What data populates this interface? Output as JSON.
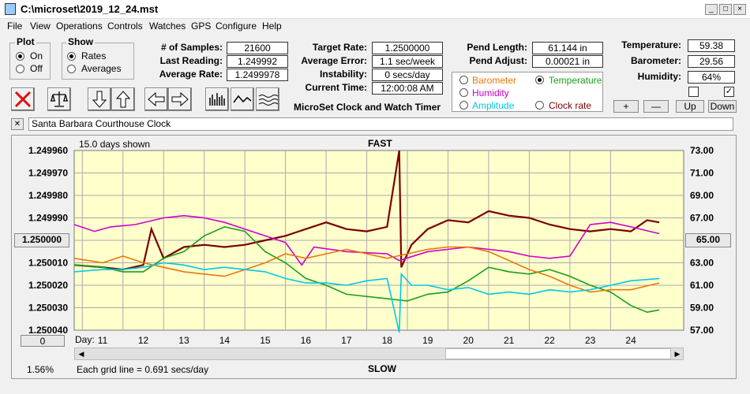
{
  "window": {
    "title": "C:\\microset\\2019_12_24.mst"
  },
  "menu": [
    "File",
    "View",
    "Operations",
    "Controls",
    "Watches",
    "GPS",
    "Configure",
    "Help"
  ],
  "plot_group": {
    "title": "Plot",
    "options": [
      "On",
      "Off"
    ],
    "selected": "On"
  },
  "show_group": {
    "title": "Show",
    "options": [
      "Rates",
      "Averages"
    ],
    "selected": "Rates"
  },
  "stats": {
    "samples_label": "# of Samples:",
    "samples": "21600",
    "last_label": "Last Reading:",
    "last": "1.249992",
    "avg_label": "Average Rate:",
    "avg": "1.2499978"
  },
  "target": {
    "target_label": "Target Rate:",
    "target": "1.2500000",
    "error_label": "Average Error:",
    "error": "1.1 sec/week",
    "instab_label": "Instability:",
    "instab": "0 secs/day",
    "time_label": "Current Time:",
    "time": "12:00:08 AM",
    "app_name": "MicroSet Clock and Watch Timer"
  },
  "pend": {
    "length_label": "Pend Length:",
    "length": "61.144 in",
    "adjust_label": "Pend Adjust:",
    "adjust": "0.00021 in"
  },
  "sensors": {
    "temp_label": "Temperature:",
    "temp": "59.38",
    "baro_label": "Barometer:",
    "baro": "29.56",
    "hum_label": "Humidity:",
    "hum": "64%"
  },
  "overlay": {
    "options": [
      {
        "label": "Barometer",
        "color": "#e8780a"
      },
      {
        "label": "Temperature",
        "color": "#1aa01a"
      },
      {
        "label": "Humidity",
        "color": "#cc00cc"
      },
      {
        "label": "Clock rate",
        "color": "#7a0000"
      },
      {
        "label": "Amplitude",
        "color": "#00c8e6"
      }
    ],
    "selected": "Temperature"
  },
  "adjust_buttons": [
    "+",
    "—",
    "Up",
    "Down"
  ],
  "watch_name": "Santa Barbara Courthouse Clock",
  "close_x": "✕",
  "checkbox_right": "✓",
  "chart": {
    "days_shown": "15.0 days shown",
    "fast": "FAST",
    "slow": "SLOW",
    "center_left": "1.250000",
    "center_right": "65.00",
    "left_zero": "0",
    "day_label": "Day:",
    "pct": "1.56%",
    "grid_note": "Each grid line = 0.691 secs/day"
  },
  "chart_data": {
    "type": "line",
    "left_ticks": [
      "1.249960",
      "1.249970",
      "1.249980",
      "1.249990",
      "1.250000",
      "1.250010",
      "1.250020",
      "1.250030",
      "1.250040"
    ],
    "right_ticks": [
      "73.00",
      "71.00",
      "69.00",
      "67.00",
      "65.00",
      "63.00",
      "61.00",
      "59.00",
      "57.00"
    ],
    "x_ticks": [
      "11",
      "12",
      "13",
      "14",
      "15",
      "16",
      "17",
      "18",
      "19",
      "20",
      "21",
      "22",
      "23",
      "24"
    ],
    "xlim": [
      10.3,
      25.3
    ],
    "series": [
      {
        "color": "#7a0000",
        "values": [
          [
            10.3,
            1.250011
          ],
          [
            11,
            1.250012
          ],
          [
            11.5,
            1.250013
          ],
          [
            12,
            1.250011
          ],
          [
            12.2,
            1.249995
          ],
          [
            12.5,
            1.250008
          ],
          [
            13,
            1.250003
          ],
          [
            13.5,
            1.250002
          ],
          [
            14,
            1.250003
          ],
          [
            14.5,
            1.250002
          ],
          [
            15,
            1.25
          ],
          [
            15.5,
            1.249998
          ],
          [
            16,
            1.249995
          ],
          [
            16.5,
            1.249992
          ],
          [
            17,
            1.249995
          ],
          [
            17.5,
            1.249996
          ],
          [
            18,
            1.249994
          ],
          [
            18.3,
            1.24996
          ],
          [
            18.35,
            1.250012
          ],
          [
            18.6,
            1.250002
          ],
          [
            19,
            1.249995
          ],
          [
            19.5,
            1.249991
          ],
          [
            20,
            1.249992
          ],
          [
            20.5,
            1.249987
          ],
          [
            21,
            1.249989
          ],
          [
            21.5,
            1.24999
          ],
          [
            22,
            1.249993
          ],
          [
            22.5,
            1.249995
          ],
          [
            23,
            1.249996
          ],
          [
            23.5,
            1.249995
          ],
          [
            24,
            1.249996
          ],
          [
            24.4,
            1.249991
          ],
          [
            24.7,
            1.249992
          ]
        ]
      },
      {
        "color": "#cc00cc",
        "values": [
          [
            10.3,
            1.249993
          ],
          [
            10.8,
            1.249996
          ],
          [
            11.2,
            1.249994
          ],
          [
            11.8,
            1.249993
          ],
          [
            12.5,
            1.24999
          ],
          [
            13,
            1.249989
          ],
          [
            13.5,
            1.24999
          ],
          [
            14,
            1.249992
          ],
          [
            14.5,
            1.249995
          ],
          [
            15,
            1.249998
          ],
          [
            15.5,
            1.250001
          ],
          [
            15.9,
            1.250011
          ],
          [
            16.2,
            1.250003
          ],
          [
            17,
            1.250005
          ],
          [
            18,
            1.250006
          ],
          [
            18.3,
            1.250009
          ],
          [
            19,
            1.250005
          ],
          [
            20,
            1.250003
          ],
          [
            21,
            1.250005
          ],
          [
            21.5,
            1.250007
          ],
          [
            22,
            1.250008
          ],
          [
            22.5,
            1.250007
          ],
          [
            23,
            1.249993
          ],
          [
            23.5,
            1.249992
          ],
          [
            24,
            1.249994
          ],
          [
            24.7,
            1.249997
          ]
        ]
      },
      {
        "color": "#1aa01a",
        "values": [
          [
            10.3,
            1.250011
          ],
          [
            11,
            1.250012
          ],
          [
            11.5,
            1.250014
          ],
          [
            12,
            1.250014
          ],
          [
            12.5,
            1.250008
          ],
          [
            13,
            1.250005
          ],
          [
            13.5,
            1.249998
          ],
          [
            14,
            1.249994
          ],
          [
            14.5,
            1.249996
          ],
          [
            15,
            1.250005
          ],
          [
            15.5,
            1.25001
          ],
          [
            16,
            1.250017
          ],
          [
            16.5,
            1.25002
          ],
          [
            17,
            1.250024
          ],
          [
            18,
            1.250026
          ],
          [
            18.5,
            1.250027
          ],
          [
            19,
            1.250024
          ],
          [
            19.5,
            1.250023
          ],
          [
            20,
            1.250018
          ],
          [
            20.5,
            1.250012
          ],
          [
            21,
            1.250014
          ],
          [
            21.5,
            1.250015
          ],
          [
            22,
            1.250013
          ],
          [
            22.5,
            1.250016
          ],
          [
            23,
            1.25002
          ],
          [
            23.5,
            1.250023
          ],
          [
            24,
            1.250029
          ],
          [
            24.4,
            1.250032
          ],
          [
            24.7,
            1.250031
          ]
        ]
      },
      {
        "color": "#e8780a",
        "values": [
          [
            10.3,
            1.250008
          ],
          [
            11,
            1.25001
          ],
          [
            11.5,
            1.250007
          ],
          [
            12,
            1.25001
          ],
          [
            12.5,
            1.250012
          ],
          [
            13,
            1.250014
          ],
          [
            13.5,
            1.250015
          ],
          [
            14,
            1.250016
          ],
          [
            14.5,
            1.250013
          ],
          [
            15,
            1.25001
          ],
          [
            15.5,
            1.250006
          ],
          [
            16,
            1.250008
          ],
          [
            16.5,
            1.250006
          ],
          [
            17,
            1.250004
          ],
          [
            18,
            1.250008
          ],
          [
            18.5,
            1.250006
          ],
          [
            19,
            1.250004
          ],
          [
            19.5,
            1.250003
          ],
          [
            20,
            1.250003
          ],
          [
            20.5,
            1.250005
          ],
          [
            21,
            1.250009
          ],
          [
            21.5,
            1.250013
          ],
          [
            22,
            1.250016
          ],
          [
            22.5,
            1.25002
          ],
          [
            23,
            1.250023
          ],
          [
            23.5,
            1.250022
          ],
          [
            24,
            1.250022
          ],
          [
            24.7,
            1.250019
          ]
        ]
      },
      {
        "color": "#00c8e6",
        "values": [
          [
            10.3,
            1.250014
          ],
          [
            11,
            1.250013
          ],
          [
            11.5,
            1.250013
          ],
          [
            12,
            1.250012
          ],
          [
            12.5,
            1.25001
          ],
          [
            13,
            1.250011
          ],
          [
            13.5,
            1.250013
          ],
          [
            14,
            1.250012
          ],
          [
            14.5,
            1.250013
          ],
          [
            15,
            1.250014
          ],
          [
            15.5,
            1.250017
          ],
          [
            16,
            1.250019
          ],
          [
            16.5,
            1.250019
          ],
          [
            17,
            1.25002
          ],
          [
            17.5,
            1.250018
          ],
          [
            18,
            1.250017
          ],
          [
            18.3,
            1.250041
          ],
          [
            18.35,
            1.250015
          ],
          [
            18.6,
            1.25002
          ],
          [
            19,
            1.25002
          ],
          [
            19.5,
            1.250022
          ],
          [
            20,
            1.250021
          ],
          [
            20.5,
            1.250024
          ],
          [
            21,
            1.250023
          ],
          [
            21.5,
            1.250024
          ],
          [
            22,
            1.250022
          ],
          [
            22.5,
            1.250023
          ],
          [
            23,
            1.250022
          ],
          [
            23.5,
            1.25002
          ],
          [
            24,
            1.250018
          ],
          [
            24.7,
            1.250017
          ]
        ]
      }
    ],
    "ylim": [
      1.24996,
      1.25004
    ]
  }
}
